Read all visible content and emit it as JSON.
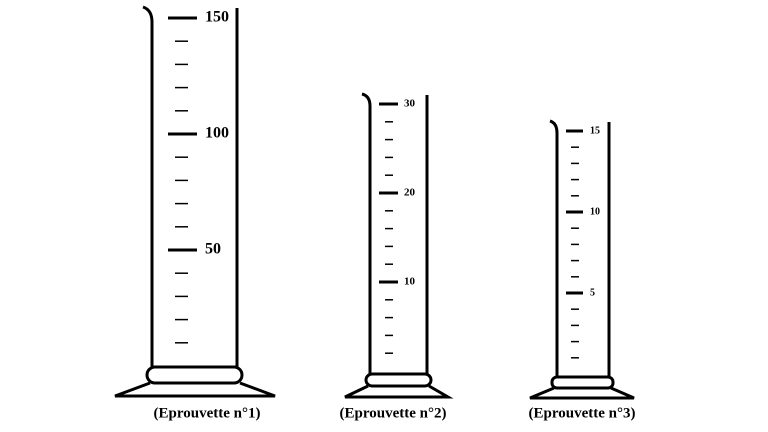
{
  "cylinders": [
    {
      "caption": "(Eprouvette n°1)",
      "graduations": [
        50,
        100,
        150
      ]
    },
    {
      "caption": "(Eprouvette n°2)",
      "graduations": [
        10,
        20,
        30
      ]
    },
    {
      "caption": "(Eprouvette n°3)",
      "graduations": [
        5,
        10,
        15
      ]
    }
  ]
}
